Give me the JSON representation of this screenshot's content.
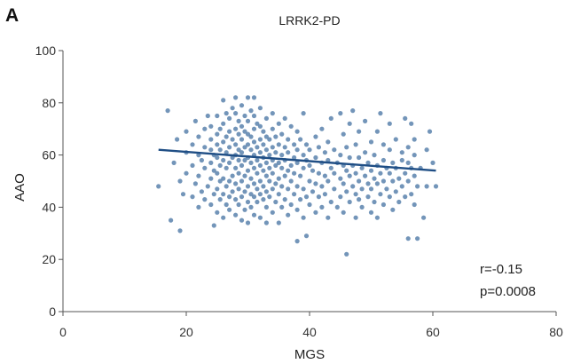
{
  "panel_label": "A",
  "chart_data": {
    "type": "scatter",
    "title": "LRRK2-PD",
    "xlabel": "MGS",
    "ylabel": "AAO",
    "xlim": [
      0,
      80
    ],
    "ylim": [
      0,
      100
    ],
    "xticks": [
      "0",
      "20",
      "40",
      "60",
      "80"
    ],
    "yticks": [
      "0",
      "20",
      "40",
      "60",
      "80",
      "100"
    ],
    "grid": false,
    "point_color": "#5b82ad",
    "line_color": "#1f4e85",
    "regression": {
      "x": [
        15.5,
        60.5
      ],
      "y": [
        62,
        54
      ]
    },
    "annotations": {
      "r": "r=-0.15",
      "p": "p=0.0008"
    },
    "points": [
      [
        15.5,
        48
      ],
      [
        17,
        77
      ],
      [
        17.5,
        35
      ],
      [
        18,
        57
      ],
      [
        18.5,
        66
      ],
      [
        19,
        31
      ],
      [
        19,
        50
      ],
      [
        19.5,
        45
      ],
      [
        20,
        53
      ],
      [
        20,
        61
      ],
      [
        20,
        69
      ],
      [
        21,
        44
      ],
      [
        21,
        56
      ],
      [
        21,
        64
      ],
      [
        21.5,
        49
      ],
      [
        21.5,
        73
      ],
      [
        22,
        40
      ],
      [
        22,
        52
      ],
      [
        22,
        60
      ],
      [
        22,
        67
      ],
      [
        22.5,
        46
      ],
      [
        22.5,
        58
      ],
      [
        23,
        43
      ],
      [
        23,
        55
      ],
      [
        23,
        63
      ],
      [
        23,
        70
      ],
      [
        23.5,
        48
      ],
      [
        23.5,
        75
      ],
      [
        24,
        41
      ],
      [
        24,
        51
      ],
      [
        24,
        57
      ],
      [
        24,
        62
      ],
      [
        24,
        66
      ],
      [
        24,
        71
      ],
      [
        24.5,
        33
      ],
      [
        24.5,
        45
      ],
      [
        24.5,
        54
      ],
      [
        24.5,
        60
      ],
      [
        25,
        38
      ],
      [
        25,
        47
      ],
      [
        25,
        53
      ],
      [
        25,
        59
      ],
      [
        25,
        64
      ],
      [
        25,
        68
      ],
      [
        25,
        75
      ],
      [
        25.5,
        43
      ],
      [
        25.5,
        50
      ],
      [
        25.5,
        56
      ],
      [
        25.5,
        62
      ],
      [
        25.5,
        70
      ],
      [
        26,
        36
      ],
      [
        26,
        45
      ],
      [
        26,
        51
      ],
      [
        26,
        58
      ],
      [
        26,
        65
      ],
      [
        26,
        72
      ],
      [
        26,
        81
      ],
      [
        26.5,
        41
      ],
      [
        26.5,
        48
      ],
      [
        26.5,
        55
      ],
      [
        26.5,
        61
      ],
      [
        26.5,
        67
      ],
      [
        26.5,
        76
      ],
      [
        27,
        39
      ],
      [
        27,
        44
      ],
      [
        27,
        50
      ],
      [
        27,
        57
      ],
      [
        27,
        63
      ],
      [
        27,
        69
      ],
      [
        27,
        74
      ],
      [
        27.5,
        46
      ],
      [
        27.5,
        52
      ],
      [
        27.5,
        59
      ],
      [
        27.5,
        66
      ],
      [
        27.5,
        78
      ],
      [
        28,
        37
      ],
      [
        28,
        43
      ],
      [
        28,
        49
      ],
      [
        28,
        55
      ],
      [
        28,
        60
      ],
      [
        28,
        64
      ],
      [
        28,
        70
      ],
      [
        28,
        76
      ],
      [
        28,
        82
      ],
      [
        28.5,
        41
      ],
      [
        28.5,
        47
      ],
      [
        28.5,
        53
      ],
      [
        28.5,
        58
      ],
      [
        28.5,
        62
      ],
      [
        28.5,
        68
      ],
      [
        28.5,
        73
      ],
      [
        29,
        35
      ],
      [
        29,
        44
      ],
      [
        29,
        50
      ],
      [
        29,
        56
      ],
      [
        29,
        61
      ],
      [
        29,
        66
      ],
      [
        29,
        71
      ],
      [
        29,
        79
      ],
      [
        29.5,
        39
      ],
      [
        29.5,
        46
      ],
      [
        29.5,
        52
      ],
      [
        29.5,
        58
      ],
      [
        29.5,
        63
      ],
      [
        29.5,
        69
      ],
      [
        29.5,
        75
      ],
      [
        30,
        34
      ],
      [
        30,
        42
      ],
      [
        30,
        48
      ],
      [
        30,
        54
      ],
      [
        30,
        59
      ],
      [
        30,
        64
      ],
      [
        30,
        68
      ],
      [
        30,
        73
      ],
      [
        30,
        82
      ],
      [
        30.5,
        40
      ],
      [
        30.5,
        45
      ],
      [
        30.5,
        51
      ],
      [
        30.5,
        57
      ],
      [
        30.5,
        62
      ],
      [
        30.5,
        67
      ],
      [
        30.5,
        77
      ],
      [
        31,
        37
      ],
      [
        31,
        44
      ],
      [
        31,
        49
      ],
      [
        31,
        55
      ],
      [
        31,
        60
      ],
      [
        31,
        65
      ],
      [
        31,
        70
      ],
      [
        31,
        75
      ],
      [
        31,
        82
      ],
      [
        31.5,
        42
      ],
      [
        31.5,
        47
      ],
      [
        31.5,
        53
      ],
      [
        31.5,
        58
      ],
      [
        31.5,
        63
      ],
      [
        31.5,
        72
      ],
      [
        32,
        36
      ],
      [
        32,
        45
      ],
      [
        32,
        50
      ],
      [
        32,
        56
      ],
      [
        32,
        61
      ],
      [
        32,
        66
      ],
      [
        32,
        71
      ],
      [
        32,
        78
      ],
      [
        32.5,
        43
      ],
      [
        32.5,
        48
      ],
      [
        32.5,
        54
      ],
      [
        32.5,
        59
      ],
      [
        32.5,
        64
      ],
      [
        32.5,
        69
      ],
      [
        33,
        34
      ],
      [
        33,
        40
      ],
      [
        33,
        46
      ],
      [
        33,
        52
      ],
      [
        33,
        57
      ],
      [
        33,
        62
      ],
      [
        33,
        67
      ],
      [
        33,
        74
      ],
      [
        33.5,
        44
      ],
      [
        33.5,
        50
      ],
      [
        33.5,
        55
      ],
      [
        33.5,
        60
      ],
      [
        33.5,
        66
      ],
      [
        34,
        38
      ],
      [
        34,
        47
      ],
      [
        34,
        53
      ],
      [
        34,
        58
      ],
      [
        34,
        63
      ],
      [
        34,
        70
      ],
      [
        34,
        76
      ],
      [
        34.5,
        42
      ],
      [
        34.5,
        49
      ],
      [
        34.5,
        56
      ],
      [
        34.5,
        61
      ],
      [
        34.5,
        67
      ],
      [
        35,
        34
      ],
      [
        35,
        45
      ],
      [
        35,
        51
      ],
      [
        35,
        57
      ],
      [
        35,
        64
      ],
      [
        35,
        72
      ],
      [
        35.5,
        40
      ],
      [
        35.5,
        48
      ],
      [
        35.5,
        55
      ],
      [
        35.5,
        60
      ],
      [
        35.5,
        68
      ],
      [
        36,
        43
      ],
      [
        36,
        52
      ],
      [
        36,
        58
      ],
      [
        36,
        63
      ],
      [
        36,
        74
      ],
      [
        36.5,
        37
      ],
      [
        36.5,
        47
      ],
      [
        36.5,
        54
      ],
      [
        36.5,
        61
      ],
      [
        36.5,
        66
      ],
      [
        37,
        41
      ],
      [
        37,
        50
      ],
      [
        37,
        56
      ],
      [
        37,
        71
      ],
      [
        37.5,
        45
      ],
      [
        37.5,
        53
      ],
      [
        37.5,
        59
      ],
      [
        37.5,
        64
      ],
      [
        38,
        27
      ],
      [
        38,
        39
      ],
      [
        38,
        48
      ],
      [
        38,
        57
      ],
      [
        38,
        62
      ],
      [
        38,
        69
      ],
      [
        38.5,
        43
      ],
      [
        38.5,
        52
      ],
      [
        38.5,
        66
      ],
      [
        39,
        36
      ],
      [
        39,
        47
      ],
      [
        39,
        55
      ],
      [
        39,
        60
      ],
      [
        39,
        76
      ],
      [
        39.5,
        29
      ],
      [
        39.5,
        44
      ],
      [
        39.5,
        58
      ],
      [
        39.5,
        64
      ],
      [
        40,
        41
      ],
      [
        40,
        50
      ],
      [
        40,
        56
      ],
      [
        40,
        62
      ],
      [
        40.5,
        46
      ],
      [
        40.5,
        54
      ],
      [
        41,
        38
      ],
      [
        41,
        49
      ],
      [
        41,
        59
      ],
      [
        41,
        67
      ],
      [
        41.5,
        44
      ],
      [
        41.5,
        53
      ],
      [
        41.5,
        63
      ],
      [
        42,
        40
      ],
      [
        42,
        48
      ],
      [
        42,
        57
      ],
      [
        42,
        70
      ],
      [
        42.5,
        45
      ],
      [
        42.5,
        52
      ],
      [
        42.5,
        61
      ],
      [
        43,
        36
      ],
      [
        43,
        50
      ],
      [
        43,
        58
      ],
      [
        43,
        65
      ],
      [
        43.5,
        42
      ],
      [
        43.5,
        55
      ],
      [
        43.5,
        74
      ],
      [
        44,
        47
      ],
      [
        44,
        53
      ],
      [
        44,
        62
      ],
      [
        44.5,
        40
      ],
      [
        44.5,
        57
      ],
      [
        45,
        44
      ],
      [
        45,
        51
      ],
      [
        45,
        60
      ],
      [
        45,
        76
      ],
      [
        45.5,
        38
      ],
      [
        45.5,
        49
      ],
      [
        45.5,
        56
      ],
      [
        45.5,
        68
      ],
      [
        46,
        22
      ],
      [
        46,
        46
      ],
      [
        46,
        54
      ],
      [
        46,
        63
      ],
      [
        46.5,
        42
      ],
      [
        46.5,
        52
      ],
      [
        46.5,
        59
      ],
      [
        46.5,
        72
      ],
      [
        47,
        48
      ],
      [
        47,
        56
      ],
      [
        47,
        77
      ],
      [
        47.5,
        36
      ],
      [
        47.5,
        45
      ],
      [
        47.5,
        53
      ],
      [
        47.5,
        64
      ],
      [
        48,
        43
      ],
      [
        48,
        50
      ],
      [
        48,
        59
      ],
      [
        48,
        69
      ],
      [
        48.5,
        40
      ],
      [
        48.5,
        47
      ],
      [
        48.5,
        55
      ],
      [
        49,
        52
      ],
      [
        49,
        61
      ],
      [
        49,
        73
      ],
      [
        49.5,
        44
      ],
      [
        49.5,
        49
      ],
      [
        49.5,
        57
      ],
      [
        50,
        38
      ],
      [
        50,
        47
      ],
      [
        50,
        54
      ],
      [
        50,
        65
      ],
      [
        50.5,
        42
      ],
      [
        50.5,
        51
      ],
      [
        50.5,
        60
      ],
      [
        51,
        36
      ],
      [
        51,
        49
      ],
      [
        51,
        56
      ],
      [
        51,
        69
      ],
      [
        51.5,
        45
      ],
      [
        51.5,
        53
      ],
      [
        51.5,
        76
      ],
      [
        52,
        41
      ],
      [
        52,
        50
      ],
      [
        52,
        58
      ],
      [
        52,
        64
      ],
      [
        52.5,
        47
      ],
      [
        52.5,
        55
      ],
      [
        53,
        44
      ],
      [
        53,
        53
      ],
      [
        53,
        62
      ],
      [
        53,
        72
      ],
      [
        53.5,
        39
      ],
      [
        53.5,
        50
      ],
      [
        53.5,
        57
      ],
      [
        54,
        46
      ],
      [
        54,
        55
      ],
      [
        54,
        66
      ],
      [
        54.5,
        42
      ],
      [
        54.5,
        51
      ],
      [
        55,
        48
      ],
      [
        55,
        58
      ],
      [
        55,
        61
      ],
      [
        55.5,
        44
      ],
      [
        55.5,
        53
      ],
      [
        55.5,
        74
      ],
      [
        56,
        28
      ],
      [
        56,
        50
      ],
      [
        56,
        57
      ],
      [
        56,
        63
      ],
      [
        56.5,
        45
      ],
      [
        56.5,
        55
      ],
      [
        56.5,
        72
      ],
      [
        57,
        41
      ],
      [
        57,
        52
      ],
      [
        57,
        60
      ],
      [
        57,
        66
      ],
      [
        57.5,
        28
      ],
      [
        57.5,
        48
      ],
      [
        58,
        55
      ],
      [
        58.5,
        36
      ],
      [
        59,
        48
      ],
      [
        59,
        62
      ],
      [
        59.5,
        69
      ],
      [
        60,
        57
      ],
      [
        60.5,
        48
      ]
    ]
  }
}
